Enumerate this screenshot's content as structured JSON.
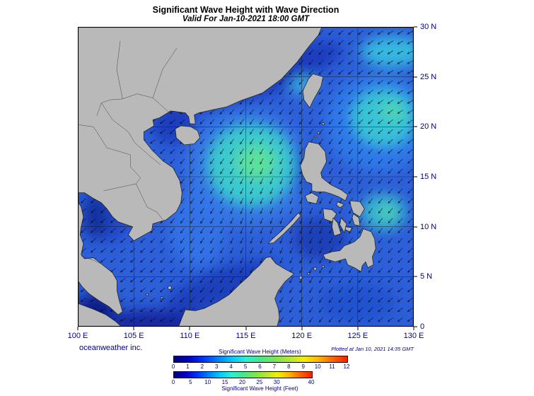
{
  "title": "Significant Wave Height with Wave Direction",
  "subtitle": "Valid For Jan-10-2021 18:00 GMT",
  "map": {
    "lon_labels": [
      "100 E",
      "105 E",
      "110 E",
      "115 E",
      "120 E",
      "125 E",
      "130 E"
    ],
    "lat_labels": [
      "30 N",
      "25 N",
      "20 N",
      "15 N",
      "10 N",
      "5 N",
      "0"
    ]
  },
  "credit": "oceanweather inc.",
  "plotted_note": "Plotted at Jan 10, 2021 14:35 GMT",
  "legend": {
    "meters_label": "Significant Wave Height (Meters)",
    "feet_label": "Significant Wave Height (Feet)",
    "meters_ticks": [
      "0",
      "1",
      "2",
      "3",
      "4",
      "5",
      "6",
      "7",
      "8",
      "9",
      "10",
      "11",
      "12"
    ],
    "feet_ticks": [
      "0",
      "5",
      "10",
      "15",
      "20",
      "25",
      "30",
      "40"
    ],
    "feet_tick_values": [
      0,
      5,
      10,
      15,
      20,
      25,
      30,
      40
    ],
    "colors": [
      "#00007f",
      "#0000c8",
      "#0032ff",
      "#0080ff",
      "#00c8ff",
      "#2af0d2",
      "#46e68c",
      "#78e650",
      "#b4e632",
      "#f0f000",
      "#ffb400",
      "#ff6400",
      "#ff1e00"
    ]
  },
  "palette": {
    "land": "#b9b9b9",
    "ocean_base": "#2d5fd8",
    "label_text": "#00008b"
  },
  "chart_data": {
    "type": "heatmap",
    "title": "Significant Wave Height with Wave Direction",
    "valid_time": "Jan-10-2021 18:00 GMT",
    "x_ticks": [
      "100 E",
      "105 E",
      "110 E",
      "115 E",
      "120 E",
      "125 E",
      "130 E"
    ],
    "y_ticks": [
      "30 N",
      "25 N",
      "20 N",
      "15 N",
      "10 N",
      "5 N",
      "0"
    ],
    "colorbar_meters_ticks": [
      0,
      1,
      2,
      3,
      4,
      5,
      6,
      7,
      8,
      9,
      10,
      11,
      12
    ],
    "colorbar_feet_ticks": [
      0,
      5,
      10,
      15,
      20,
      25,
      30,
      40
    ]
  }
}
